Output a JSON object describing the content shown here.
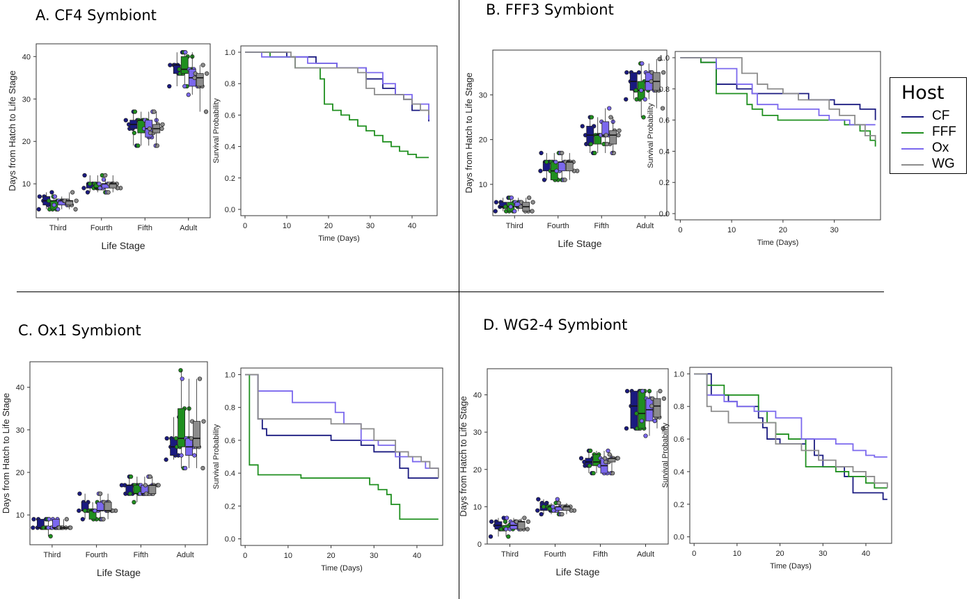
{
  "colors": {
    "CF": "#1a1a80",
    "FFF": "#1f8f1f",
    "Ox": "#7b68ee",
    "WG": "#8c8c8c"
  },
  "legend": {
    "title": "Host",
    "items": [
      {
        "label": "CF",
        "color": "#1a1a80"
      },
      {
        "label": "FFF",
        "color": "#1f8f1f"
      },
      {
        "label": "Ox",
        "color": "#7b68ee"
      },
      {
        "label": "WG",
        "color": "#8c8c8c"
      }
    ]
  },
  "panels": [
    {
      "id": "A",
      "title": "A. CF4 Symbiont"
    },
    {
      "id": "B",
      "title": "B. FFF3 Symbiont"
    },
    {
      "id": "C",
      "title": "C. Ox1 Symbiont"
    },
    {
      "id": "D",
      "title": "D. WG2-4 Symbiont"
    }
  ],
  "chart_data": [
    {
      "panel": "A",
      "type": "box",
      "xlabel": "Life Stage",
      "ylabel": "Days from Hatch to Life Stage",
      "categories": [
        "Third",
        "Fourth",
        "Fifth",
        "Adult"
      ],
      "groups": [
        "CF",
        "FFF",
        "Ox",
        "WG"
      ],
      "ylim": [
        2,
        43
      ],
      "yticks": [
        10,
        20,
        30,
        40
      ],
      "boxes": {
        "Third": [
          [
            4,
            5,
            6,
            7,
            8
          ],
          [
            4,
            4,
            6,
            6,
            7
          ],
          [
            4,
            5,
            6,
            6,
            7
          ],
          [
            4,
            5,
            6,
            6,
            8
          ]
        ],
        "Fourth": [
          [
            8,
            9,
            10,
            10,
            12
          ],
          [
            8,
            9,
            9,
            10,
            12
          ],
          [
            8,
            9,
            10,
            10,
            11
          ],
          [
            8,
            9,
            10,
            10,
            12
          ]
        ],
        "Fifth": [
          [
            19,
            23,
            24,
            25,
            27
          ],
          [
            19,
            22,
            25,
            25,
            27
          ],
          [
            19,
            21,
            23,
            25,
            27
          ],
          [
            19,
            22,
            23,
            24,
            27
          ]
        ],
        "Adult": [
          [
            33,
            36,
            38,
            38,
            41
          ],
          [
            33,
            36,
            37,
            40,
            41
          ],
          [
            31,
            33,
            35,
            37,
            41
          ],
          [
            27,
            33,
            35,
            36,
            38
          ]
        ]
      }
    },
    {
      "panel": "A",
      "type": "line",
      "step": true,
      "xlabel": "Time (Days)",
      "ylabel": "Survival Probability",
      "xlim": [
        -1,
        46
      ],
      "ylim": [
        -0.04,
        1.04
      ],
      "xticks": [
        0,
        10,
        20,
        30,
        40
      ],
      "yticks": [
        0.0,
        0.2,
        0.4,
        0.6,
        0.8,
        1.0
      ],
      "series": [
        {
          "name": "CF",
          "x": [
            0,
            10,
            17,
            22,
            29,
            33,
            36,
            38,
            40,
            44
          ],
          "y": [
            1.0,
            0.97,
            0.93,
            0.9,
            0.83,
            0.77,
            0.73,
            0.7,
            0.63,
            0.56
          ]
        },
        {
          "name": "FFF",
          "x": [
            0,
            6,
            12,
            18,
            19,
            21,
            23,
            25,
            27,
            29,
            31,
            33,
            35,
            37,
            39,
            41,
            44
          ],
          "y": [
            1.0,
            0.97,
            0.9,
            0.83,
            0.67,
            0.63,
            0.6,
            0.57,
            0.53,
            0.5,
            0.47,
            0.43,
            0.4,
            0.37,
            0.35,
            0.33,
            0.33
          ]
        },
        {
          "name": "Ox",
          "x": [
            0,
            4,
            10,
            15,
            22,
            29,
            33,
            36,
            40,
            44
          ],
          "y": [
            1.0,
            0.97,
            0.97,
            0.93,
            0.9,
            0.87,
            0.8,
            0.73,
            0.67,
            0.57
          ]
        },
        {
          "name": "WG",
          "x": [
            0,
            11,
            12,
            22,
            27,
            29,
            31,
            35,
            38,
            40,
            42,
            44
          ],
          "y": [
            1.0,
            0.97,
            0.9,
            0.9,
            0.87,
            0.77,
            0.73,
            0.73,
            0.7,
            0.67,
            0.63,
            0.6
          ]
        }
      ]
    },
    {
      "panel": "B",
      "type": "box",
      "xlabel": "Life Stage",
      "ylabel": "Days from Hatch to Life Stage",
      "categories": [
        "Third",
        "Fourth",
        "Fifth",
        "Adult"
      ],
      "groups": [
        "CF",
        "FFF",
        "Ox",
        "WG"
      ],
      "ylim": [
        3,
        40
      ],
      "yticks": [
        10,
        20,
        30
      ],
      "boxes": {
        "Third": [
          [
            4,
            5,
            5,
            6,
            7
          ],
          [
            4,
            4,
            5,
            6,
            7
          ],
          [
            4,
            5,
            5,
            6,
            7
          ],
          [
            4,
            4,
            5,
            6,
            7
          ]
        ],
        "Fourth": [
          [
            11,
            13,
            15,
            15,
            17
          ],
          [
            11,
            11,
            13,
            15,
            17
          ],
          [
            11,
            13,
            15,
            15,
            17
          ],
          [
            11,
            13,
            15,
            15,
            17
          ]
        ],
        "Fifth": [
          [
            17,
            19,
            21,
            23,
            25
          ],
          [
            17,
            19,
            21,
            21,
            25
          ],
          [
            17,
            21,
            21,
            24,
            27
          ],
          [
            17,
            19,
            21,
            22,
            25
          ]
        ],
        "Adult": [
          [
            29,
            31,
            33,
            35,
            35
          ],
          [
            25,
            29,
            31,
            33,
            37
          ],
          [
            29,
            31,
            33,
            35,
            37
          ],
          [
            27,
            31,
            33,
            35,
            38
          ]
        ]
      }
    },
    {
      "panel": "B",
      "type": "line",
      "step": true,
      "xlabel": "Time (Days)",
      "ylabel": "Survival Probability",
      "xlim": [
        -1,
        39
      ],
      "ylim": [
        -0.04,
        1.04
      ],
      "xticks": [
        0,
        10,
        20,
        30
      ],
      "yticks": [
        0.0,
        0.2,
        0.4,
        0.6,
        0.8,
        1.0
      ],
      "series": [
        {
          "name": "CF",
          "x": [
            0,
            4,
            7,
            11,
            14,
            19,
            25,
            30,
            35,
            38
          ],
          "y": [
            1.0,
            0.97,
            0.83,
            0.8,
            0.77,
            0.77,
            0.73,
            0.7,
            0.67,
            0.6
          ]
        },
        {
          "name": "FFF",
          "x": [
            0,
            4,
            7,
            13,
            14,
            16,
            19,
            28,
            32,
            35,
            37,
            38
          ],
          "y": [
            1.0,
            0.97,
            0.77,
            0.7,
            0.67,
            0.63,
            0.6,
            0.6,
            0.57,
            0.53,
            0.47,
            0.43
          ]
        },
        {
          "name": "Ox",
          "x": [
            0,
            7,
            11,
            14,
            15,
            19,
            27,
            29,
            33,
            38
          ],
          "y": [
            1.0,
            0.93,
            0.83,
            0.77,
            0.7,
            0.67,
            0.63,
            0.6,
            0.57,
            0.57
          ]
        },
        {
          "name": "WG",
          "x": [
            0,
            10,
            12,
            15,
            17,
            20,
            23,
            29,
            31,
            34,
            36,
            38
          ],
          "y": [
            1.0,
            1.0,
            0.9,
            0.83,
            0.8,
            0.77,
            0.73,
            0.67,
            0.63,
            0.57,
            0.5,
            0.47
          ]
        }
      ]
    },
    {
      "panel": "C",
      "type": "box",
      "xlabel": "Life Stage",
      "ylabel": "Days from Hatch to Life Stage",
      "categories": [
        "Third",
        "Fourth",
        "Fifth",
        "Adult"
      ],
      "groups": [
        "CF",
        "FFF",
        "Ox",
        "WG"
      ],
      "ylim": [
        3,
        46
      ],
      "yticks": [
        10,
        20,
        30,
        40
      ],
      "boxes": {
        "Third": [
          [
            7,
            7,
            7,
            9,
            9
          ],
          [
            5,
            7,
            7,
            7,
            9
          ],
          [
            7,
            7,
            7,
            9,
            9
          ],
          [
            7,
            7,
            7,
            7,
            9
          ]
        ],
        "Fourth": [
          [
            9,
            11,
            11,
            13,
            15
          ],
          [
            9,
            9,
            11,
            11,
            13
          ],
          [
            9,
            11,
            11,
            13,
            15
          ],
          [
            9,
            11,
            11,
            13,
            15
          ]
        ],
        "Fifth": [
          [
            15,
            15,
            17,
            17,
            19
          ],
          [
            13,
            15,
            15,
            17,
            19
          ],
          [
            15,
            15,
            15,
            17,
            19
          ],
          [
            15,
            15,
            17,
            17,
            19
          ]
        ],
        "Adult": [
          [
            23,
            24,
            26,
            28,
            33
          ],
          [
            21,
            26,
            28,
            35,
            44
          ],
          [
            21,
            24,
            26,
            28,
            42
          ],
          [
            21,
            26,
            28,
            32,
            42
          ]
        ]
      }
    },
    {
      "panel": "C",
      "type": "line",
      "step": true,
      "xlabel": "Time (Days)",
      "ylabel": "Survival Probability",
      "xlim": [
        -1,
        46
      ],
      "ylim": [
        -0.04,
        1.04
      ],
      "xticks": [
        0,
        10,
        20,
        30,
        40
      ],
      "yticks": [
        0.0,
        0.2,
        0.4,
        0.6,
        0.8,
        1.0
      ],
      "series": [
        {
          "name": "CF",
          "x": [
            0,
            1,
            3,
            4,
            5,
            20,
            24,
            27,
            30,
            36,
            38,
            45
          ],
          "y": [
            1.0,
            1.0,
            0.73,
            0.67,
            0.63,
            0.6,
            0.6,
            0.57,
            0.53,
            0.43,
            0.37,
            0.37
          ]
        },
        {
          "name": "FFF",
          "x": [
            0,
            1,
            3,
            13,
            29,
            31,
            33,
            34,
            36,
            45
          ],
          "y": [
            1.0,
            0.45,
            0.39,
            0.37,
            0.33,
            0.3,
            0.27,
            0.21,
            0.12,
            0.12
          ]
        },
        {
          "name": "Ox",
          "x": [
            0,
            2,
            3,
            11,
            15,
            21,
            23,
            27,
            31,
            35,
            37,
            39,
            42,
            45
          ],
          "y": [
            1.0,
            1.0,
            0.9,
            0.83,
            0.83,
            0.77,
            0.7,
            0.6,
            0.57,
            0.5,
            0.5,
            0.47,
            0.43,
            0.43
          ]
        },
        {
          "name": "WG",
          "x": [
            0,
            2,
            3,
            12,
            20,
            27,
            30,
            32,
            35,
            38,
            41,
            43,
            45
          ],
          "y": [
            1.0,
            1.0,
            0.73,
            0.73,
            0.7,
            0.67,
            0.6,
            0.6,
            0.53,
            0.5,
            0.47,
            0.43,
            0.37
          ]
        }
      ]
    },
    {
      "panel": "D",
      "type": "box",
      "xlabel": "Life Stage",
      "ylabel": "Days from Hatch to Life Stage",
      "categories": [
        "Third",
        "Fourth",
        "Fifth",
        "Adult"
      ],
      "groups": [
        "CF",
        "FFF",
        "Ox",
        "WG"
      ],
      "ylim": [
        0,
        47
      ],
      "yticks": [
        0,
        10,
        20,
        30,
        40
      ],
      "boxes": {
        "Third": [
          [
            2,
            4,
            5,
            6,
            7
          ],
          [
            2,
            4,
            4,
            5,
            6
          ],
          [
            4,
            4,
            5,
            6,
            7
          ],
          [
            4,
            4,
            6,
            6,
            7
          ]
        ],
        "Fourth": [
          [
            8,
            9,
            10,
            11,
            12
          ],
          [
            8,
            9,
            10,
            10,
            11
          ],
          [
            8,
            9,
            10,
            10,
            12
          ],
          [
            8,
            9,
            10,
            10,
            11
          ]
        ],
        "Fifth": [
          [
            19,
            21,
            22,
            23,
            25
          ],
          [
            19,
            21,
            22,
            24,
            25
          ],
          [
            19,
            19,
            21,
            23,
            25
          ],
          [
            19,
            22,
            23,
            23,
            24
          ]
        ],
        "Adult": [
          [
            31,
            31,
            37,
            41,
            41
          ],
          [
            31,
            31,
            35,
            41,
            41
          ],
          [
            29,
            33,
            36,
            39,
            41
          ],
          [
            31,
            34,
            37,
            39,
            41
          ]
        ]
      }
    },
    {
      "panel": "D",
      "type": "line",
      "step": true,
      "xlabel": "Time (Days)",
      "ylabel": "Survival Probability",
      "xlim": [
        -1,
        46
      ],
      "ylim": [
        -0.04,
        1.04
      ],
      "xticks": [
        0,
        10,
        20,
        30,
        40
      ],
      "yticks": [
        0.0,
        0.2,
        0.4,
        0.6,
        0.8,
        1.0
      ],
      "series": [
        {
          "name": "CF",
          "x": [
            0,
            2,
            4,
            8,
            10,
            15,
            16,
            17,
            20,
            26,
            28,
            30,
            35,
            37,
            40,
            44,
            45
          ],
          "y": [
            1.0,
            1.0,
            0.87,
            0.83,
            0.8,
            0.73,
            0.67,
            0.6,
            0.57,
            0.6,
            0.5,
            0.43,
            0.37,
            0.27,
            0.27,
            0.23,
            0.23
          ]
        },
        {
          "name": "FFF",
          "x": [
            0,
            2,
            3,
            7,
            11,
            15,
            17,
            19,
            22,
            26,
            29,
            33,
            36,
            40,
            42,
            45
          ],
          "y": [
            1.0,
            1.0,
            0.93,
            0.87,
            0.87,
            0.77,
            0.7,
            0.63,
            0.6,
            0.43,
            0.43,
            0.4,
            0.37,
            0.33,
            0.3,
            0.3
          ]
        },
        {
          "name": "Ox",
          "x": [
            0,
            2,
            3,
            7,
            10,
            14,
            19,
            25,
            30,
            33,
            37,
            40,
            42,
            45
          ],
          "y": [
            1.0,
            1.0,
            0.87,
            0.83,
            0.8,
            0.77,
            0.73,
            0.6,
            0.6,
            0.57,
            0.53,
            0.5,
            0.49,
            0.49
          ]
        },
        {
          "name": "WG",
          "x": [
            0,
            1,
            3,
            4,
            8,
            13,
            19,
            25,
            29,
            33,
            37,
            40,
            42,
            45
          ],
          "y": [
            1.0,
            1.0,
            0.8,
            0.77,
            0.7,
            0.7,
            0.57,
            0.53,
            0.47,
            0.43,
            0.4,
            0.37,
            0.33,
            0.3
          ]
        }
      ]
    }
  ]
}
